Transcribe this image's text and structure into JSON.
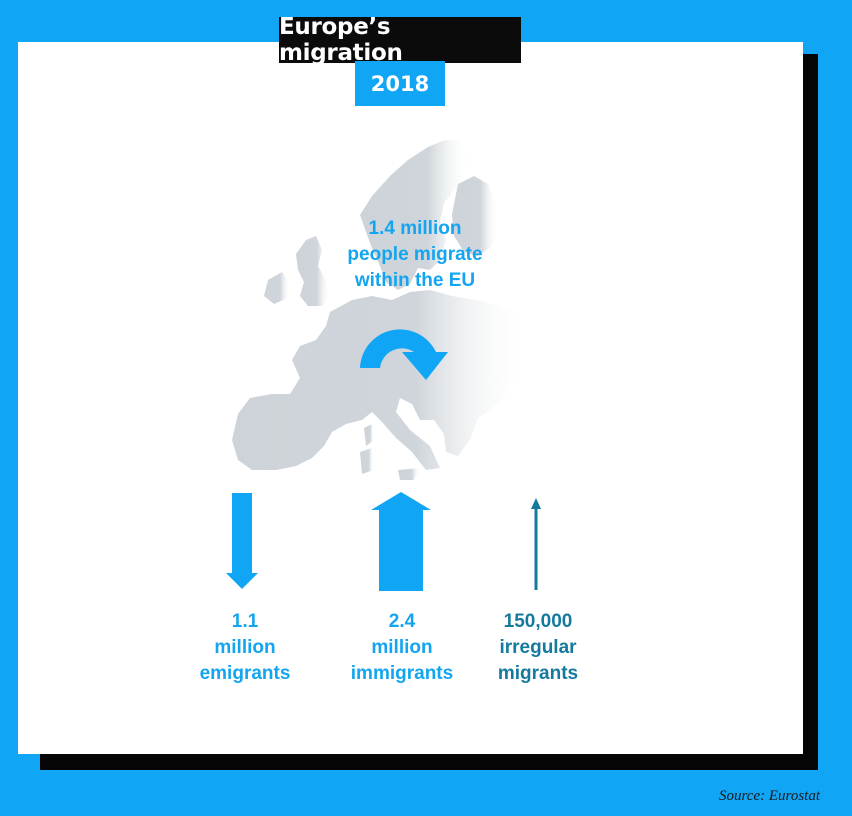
{
  "title": "Europe’s migration",
  "year": "2018",
  "source": "Source: Eurostat",
  "colors": {
    "background": "#10a5f5",
    "accent_blue": "#14a5f0",
    "teal": "#157a9e",
    "map_gray": "#cdd3d8",
    "card": "#ffffff",
    "shadow": "#050505"
  },
  "chart_data": {
    "type": "flows",
    "unit": "people",
    "flows": [
      {
        "key": "within_eu",
        "label_lines": [
          "1.4 million",
          "people migrate",
          "within the EU"
        ],
        "value": 1400000,
        "direction": "circular",
        "icon": "curved-arrow-icon"
      },
      {
        "key": "emigrants",
        "label_lines": [
          "1.1",
          "million",
          "emigrants"
        ],
        "value": 1100000,
        "direction": "down",
        "icon": "down-arrow-icon"
      },
      {
        "key": "immigrants",
        "label_lines": [
          "2.4",
          "million",
          "immigrants"
        ],
        "value": 2400000,
        "direction": "up",
        "icon": "up-arrow-icon"
      },
      {
        "key": "irregular",
        "label_lines": [
          "150,000",
          "irregular",
          "migrants"
        ],
        "value": 150000,
        "direction": "up",
        "icon": "thin-up-arrow-icon"
      }
    ]
  }
}
